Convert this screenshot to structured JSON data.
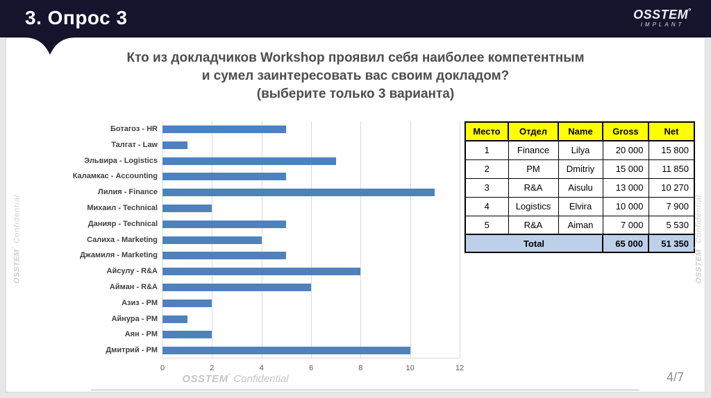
{
  "header": {
    "title": "3. Опрос 3",
    "logo": {
      "brand": "OSSTEM",
      "mark": "°",
      "sub": "IMPLANT"
    }
  },
  "question": {
    "line1": "Кто из докладчиков Workshop проявил себя наиболее компетентным",
    "line2": "и сумел заинтересовать вас своим докладом?",
    "line3": "(выберите только 3 варианта)"
  },
  "chart_data": {
    "type": "bar",
    "orientation": "horizontal",
    "title": "",
    "xlabel": "",
    "ylabel": "",
    "categories": [
      "Ботагоз - HR",
      "Талгат - Law",
      "Эльвира - Logistics",
      "Каламкас - Accounting",
      "Лилия - Finance",
      "Михаил - Technical",
      "Данияр - Technical",
      "Салиха - Marketing",
      "Джамиля - Marketing",
      "Айсулу - R&A",
      "Айман - R&A",
      "Азиз - PM",
      "Айнура - PM",
      "Аян - PM",
      "Дмитрий - PM"
    ],
    "values": [
      5,
      1,
      7,
      5,
      11,
      2,
      5,
      4,
      5,
      8,
      6,
      2,
      1,
      2,
      10
    ],
    "xlim": [
      0,
      12
    ],
    "xticks": [
      0,
      2,
      4,
      6,
      8,
      10,
      12
    ],
    "grid": true,
    "legend": false,
    "bar_color": "#4f81bd",
    "gridline_color": "#d9d9d9"
  },
  "table": {
    "headers": [
      "Место",
      "Отдел",
      "Name",
      "Gross",
      "Net"
    ],
    "rows": [
      [
        "1",
        "Finance",
        "Lilya",
        "20 000",
        "15 800"
      ],
      [
        "2",
        "PM",
        "Dmitriy",
        "15 000",
        "11 850"
      ],
      [
        "3",
        "R&A",
        "Aisulu",
        "13 000",
        "10 270"
      ],
      [
        "4",
        "Logistics",
        "Elvira",
        "10 000",
        "7 900"
      ],
      [
        "5",
        "R&A",
        "Aiman",
        "7 000",
        "5 530"
      ]
    ],
    "total": {
      "label": "Total",
      "gross": "65 000",
      "net": "51 350"
    },
    "header_bg": "#ffff00",
    "total_bg": "#bdd0e9"
  },
  "watermarks": {
    "brand": "OSSTEM",
    "mark": "°",
    "label": "Confidential"
  },
  "footer": {
    "page": "4/7"
  },
  "colors": {
    "header_bg": "#14142d",
    "bar": "#4f81bd",
    "title_text": "#4d4d4d",
    "slide_bg": "#ffffff"
  }
}
